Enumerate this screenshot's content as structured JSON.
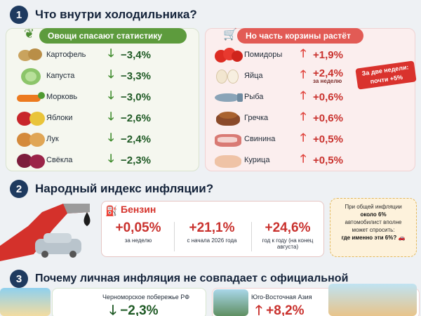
{
  "section1": {
    "number": "1",
    "title": "Что внутри холодильника?",
    "green_heading": "Овощи спасают статистику",
    "red_heading": "Но часть корзины растёт",
    "vegetables": [
      {
        "name": "Картофель",
        "change": "−3,4%"
      },
      {
        "name": "Капуста",
        "change": "−3,3%"
      },
      {
        "name": "Морковь",
        "change": "−3,0%"
      },
      {
        "name": "Яблоки",
        "change": "−2,6%"
      },
      {
        "name": "Лук",
        "change": "−2,4%"
      },
      {
        "name": "Свёкла",
        "change": "−2,3%"
      }
    ],
    "rising": [
      {
        "name": "Помидоры",
        "change": "+1,9%",
        "note": ""
      },
      {
        "name": "Яйца",
        "change": "+2,4%",
        "note": "за неделю"
      },
      {
        "name": "Рыба",
        "change": "+0,6%",
        "note": ""
      },
      {
        "name": "Гречка",
        "change": "+0,6%",
        "note": ""
      },
      {
        "name": "Свинина",
        "change": "+0,5%",
        "note": ""
      },
      {
        "name": "Курица",
        "change": "+0,5%",
        "note": ""
      }
    ],
    "badge_line1": "За две недели:",
    "badge_line2": "почти +5%"
  },
  "section2": {
    "number": "2",
    "title": "Народный индекс инфляции?",
    "fuel_label": "Бензин",
    "metrics": [
      {
        "value": "+0,05%",
        "caption": "за неделю"
      },
      {
        "value": "+21,1%",
        "caption": "с начала 2026 года"
      },
      {
        "value": "+24,6%",
        "caption": "год к году (на конец августа)"
      }
    ],
    "callout_line1": "При общей инфляции",
    "callout_line2": "около 6%",
    "callout_line3": "автомобилист вполне",
    "callout_line4": "может спросить:",
    "callout_question": "где именно эти 6%?"
  },
  "section3": {
    "number": "3",
    "title": "Почему личная инфляция не совпадает с официальной",
    "dest_a": {
      "name": "Черноморское побережье РФ",
      "change": "−2,3%"
    },
    "dest_b": {
      "name": "Юго-Восточная Азия",
      "change": "+8,2%"
    }
  },
  "colors": {
    "green": "#3e8b2c",
    "red": "#e0453e",
    "navy": "#1e3a5f"
  }
}
